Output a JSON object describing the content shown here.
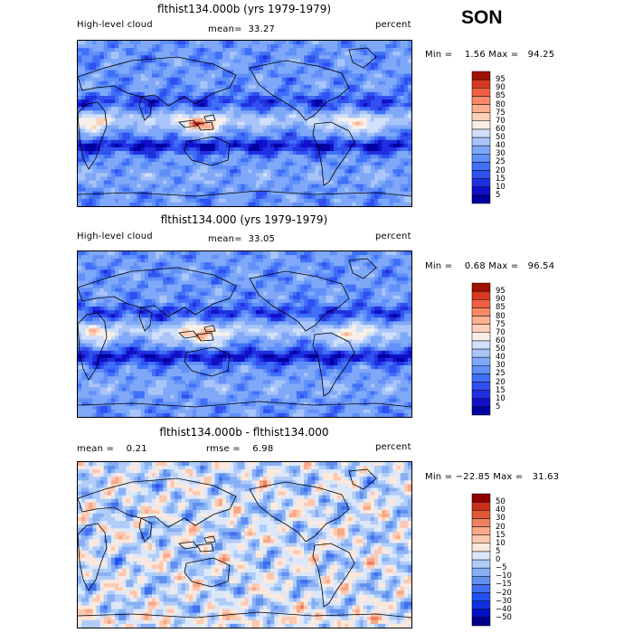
{
  "season": "SON",
  "panels": [
    {
      "title": "flthist134.000b (yrs 1979-1979)",
      "left_label": "High-level cloud",
      "center_label": "mean=  33.27",
      "right_label": "percent",
      "minmax": "Min =    1.56 Max =   94.25",
      "colorbar": [
        "95",
        "90",
        "85",
        "80",
        "75",
        "70",
        "60",
        "50",
        "40",
        "30",
        "25",
        "20",
        "15",
        "10",
        "5"
      ]
    },
    {
      "title": "flthist134.000 (yrs 1979-1979)",
      "left_label": "High-level cloud",
      "center_label": "mean=  33.05",
      "right_label": "percent",
      "minmax": "Min =    0.68 Max =   96.54",
      "colorbar": [
        "95",
        "90",
        "85",
        "80",
        "75",
        "70",
        "60",
        "50",
        "40",
        "30",
        "25",
        "20",
        "15",
        "10",
        "5"
      ]
    },
    {
      "title": "flthist134.000b - flthist134.000",
      "left_label": "mean =    0.21",
      "center_label": "rmse =    6.98",
      "right_label": "percent",
      "minmax": "Min = −22.85 Max =   31.63",
      "colorbar": [
        "50",
        "40",
        "30",
        "20",
        "15",
        "10",
        "5",
        "0",
        "−5",
        "−10",
        "−15",
        "−20",
        "−30",
        "−40",
        "−50"
      ]
    }
  ],
  "colors": {
    "abs_scale": [
      "#0000a0",
      "#1010c8",
      "#2030e0",
      "#3050f0",
      "#4070f8",
      "#6090f8",
      "#80a8f8",
      "#a8c4f8",
      "#d0e0fa",
      "#f8f0e8",
      "#fcd0b8",
      "#fcb090",
      "#f88868",
      "#f06040",
      "#d83820",
      "#a01000"
    ],
    "diff_scale": [
      "#000090",
      "#0010c0",
      "#1030e0",
      "#2050f0",
      "#4070f0",
      "#6090f0",
      "#88b0f4",
      "#b0ccf8",
      "#dce8fa",
      "#fce8dc",
      "#fcc8b0",
      "#f8a888",
      "#f08060",
      "#e05838",
      "#c83018",
      "#900000"
    ]
  },
  "chart_data": [
    {
      "type": "heatmap",
      "title": "flthist134.000b (yrs 1979-1979)",
      "variable": "High-level cloud",
      "units": "percent",
      "mean": 33.27,
      "min": 1.56,
      "max": 94.25,
      "contour_levels": [
        5,
        10,
        15,
        20,
        25,
        30,
        40,
        50,
        60,
        70,
        75,
        80,
        85,
        90,
        95
      ]
    },
    {
      "type": "heatmap",
      "title": "flthist134.000 (yrs 1979-1979)",
      "variable": "High-level cloud",
      "units": "percent",
      "mean": 33.05,
      "min": 0.68,
      "max": 96.54,
      "contour_levels": [
        5,
        10,
        15,
        20,
        25,
        30,
        40,
        50,
        60,
        70,
        75,
        80,
        85,
        90,
        95
      ]
    },
    {
      "type": "heatmap",
      "title": "flthist134.000b - flthist134.000",
      "units": "percent",
      "mean": 0.21,
      "rmse": 6.98,
      "min": -22.85,
      "max": 31.63,
      "contour_levels": [
        -50,
        -40,
        -30,
        -20,
        -15,
        -10,
        -5,
        0,
        5,
        10,
        15,
        20,
        30,
        40,
        50
      ]
    }
  ]
}
